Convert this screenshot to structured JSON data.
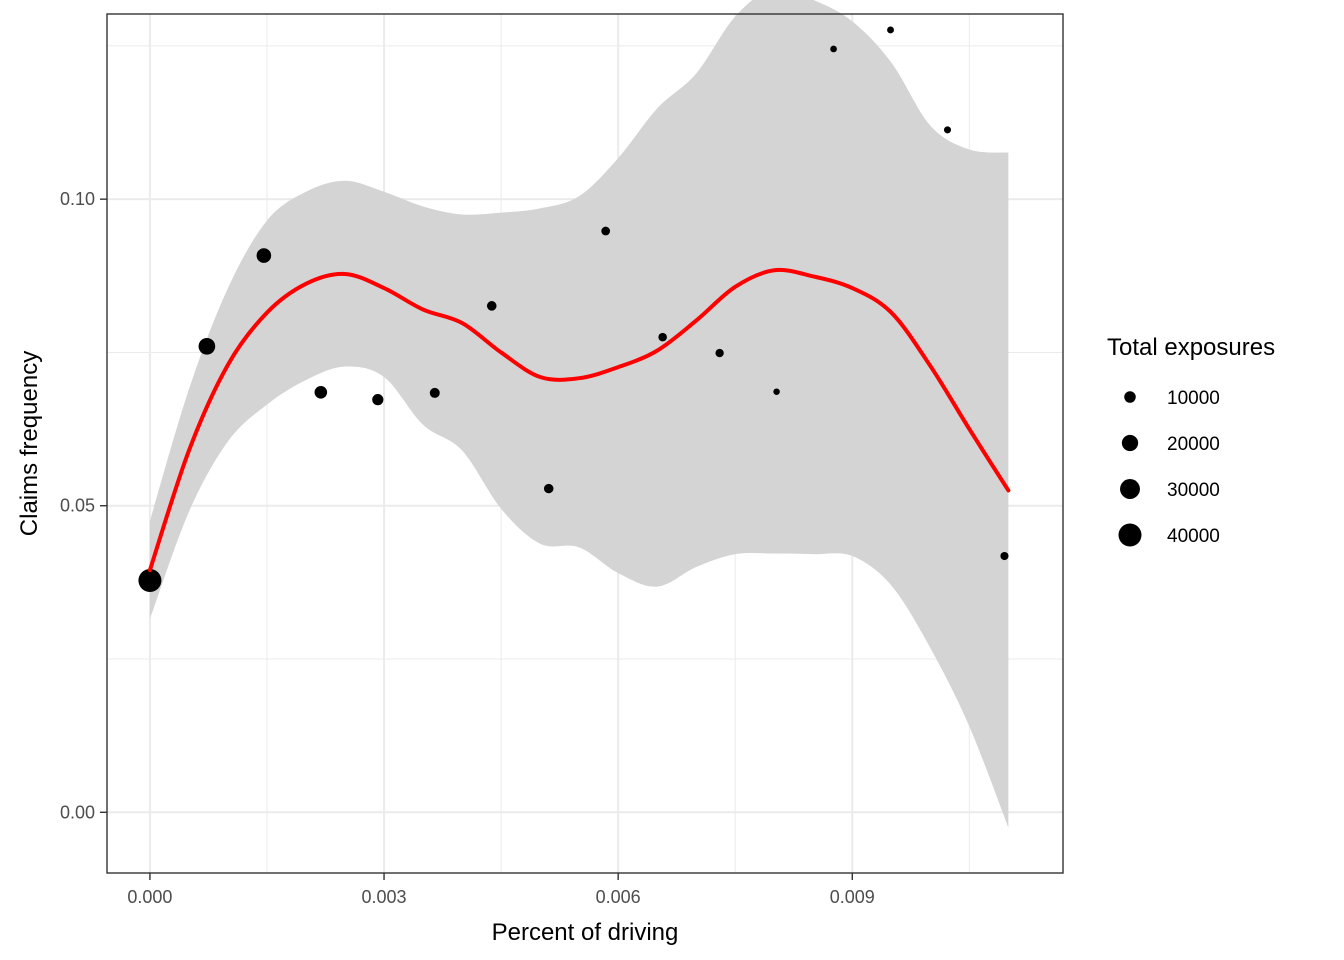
{
  "chart_data": {
    "type": "scatter",
    "xlabel": "Percent of driving",
    "ylabel": "Claims frequency",
    "xlim": [
      -0.00055,
      0.0117
    ],
    "ylim": [
      -0.0099,
      0.1302
    ],
    "x_ticks": [
      0.0,
      0.003,
      0.006,
      0.009
    ],
    "x_tick_labels": [
      "0.000",
      "0.003",
      "0.006",
      "0.009"
    ],
    "y_ticks": [
      0.0,
      0.05,
      0.1
    ],
    "y_tick_labels": [
      "0.00",
      "0.05",
      "0.10"
    ],
    "grid": true,
    "colors": {
      "points": "#000000",
      "smooth_line": "#ff0000",
      "ribbon": "#d4d4d4",
      "grid": "#ebebeb"
    },
    "points": [
      {
        "x": 0.0,
        "y": 0.0378,
        "size": 40000
      },
      {
        "x": 0.00073,
        "y": 0.076,
        "size": 21000
      },
      {
        "x": 0.00146,
        "y": 0.0908,
        "size": 16000
      },
      {
        "x": 0.00219,
        "y": 0.0685,
        "size": 12000
      },
      {
        "x": 0.00292,
        "y": 0.0673,
        "size": 9500
      },
      {
        "x": 0.00365,
        "y": 0.0684,
        "size": 7500
      },
      {
        "x": 0.00438,
        "y": 0.0826,
        "size": 7000
      },
      {
        "x": 0.00511,
        "y": 0.0528,
        "size": 6800
      },
      {
        "x": 0.00584,
        "y": 0.0948,
        "size": 5800
      },
      {
        "x": 0.00657,
        "y": 0.0775,
        "size": 5500
      },
      {
        "x": 0.0073,
        "y": 0.0749,
        "size": 5200
      },
      {
        "x": 0.00803,
        "y": 0.0686,
        "size": 3200
      },
      {
        "x": 0.00876,
        "y": 0.1245,
        "size": 3400
      },
      {
        "x": 0.00949,
        "y": 0.1276,
        "size": 3600
      },
      {
        "x": 0.01022,
        "y": 0.1113,
        "size": 3800
      },
      {
        "x": 0.01095,
        "y": 0.0418,
        "size": 5000
      }
    ],
    "smooth": {
      "x": [
        0.0,
        0.0005,
        0.001,
        0.0015,
        0.002,
        0.0025,
        0.003,
        0.0035,
        0.004,
        0.0045,
        0.005,
        0.0055,
        0.006,
        0.0065,
        0.007,
        0.0075,
        0.008,
        0.0085,
        0.009,
        0.0095,
        0.01,
        0.0105,
        0.011
      ],
      "y": [
        0.0395,
        0.059,
        0.073,
        0.0815,
        0.0862,
        0.0878,
        0.0855,
        0.082,
        0.0798,
        0.075,
        0.071,
        0.0708,
        0.0726,
        0.0753,
        0.0802,
        0.0857,
        0.0884,
        0.0874,
        0.0855,
        0.0815,
        0.0728,
        0.0625,
        0.0525
      ],
      "lower": [
        0.0315,
        0.049,
        0.0605,
        0.0665,
        0.0705,
        0.0727,
        0.071,
        0.0632,
        0.059,
        0.0495,
        0.0438,
        0.0432,
        0.039,
        0.0368,
        0.04,
        0.0421,
        0.0422,
        0.0421,
        0.0418,
        0.037,
        0.0268,
        0.014,
        -0.0025
      ],
      "upper": [
        0.0475,
        0.069,
        0.0855,
        0.0965,
        0.1012,
        0.103,
        0.1012,
        0.0988,
        0.0975,
        0.0978,
        0.0985,
        0.1005,
        0.1067,
        0.1148,
        0.1205,
        0.1298,
        0.1344,
        0.1325,
        0.129,
        0.1223,
        0.112,
        0.1081,
        0.1076
      ]
    },
    "legend": {
      "title": "Total exposures",
      "position": "right",
      "items": [
        {
          "label": "10000",
          "size": 10000
        },
        {
          "label": "20000",
          "size": 20000
        },
        {
          "label": "30000",
          "size": 30000
        },
        {
          "label": "40000",
          "size": 40000
        }
      ]
    }
  }
}
